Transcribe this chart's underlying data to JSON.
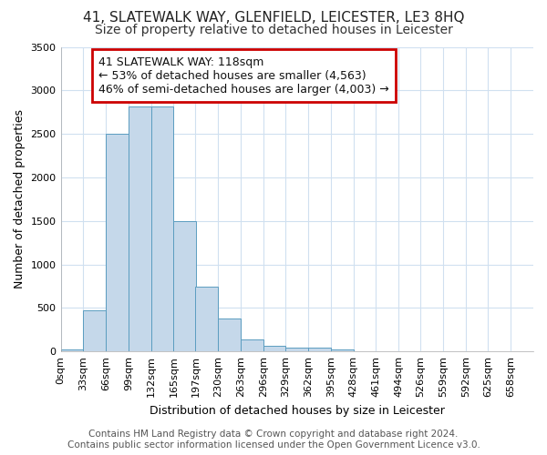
{
  "title": "41, SLATEWALK WAY, GLENFIELD, LEICESTER, LE3 8HQ",
  "subtitle": "Size of property relative to detached houses in Leicester",
  "xlabel": "Distribution of detached houses by size in Leicester",
  "ylabel": "Number of detached properties",
  "footer_line1": "Contains HM Land Registry data © Crown copyright and database right 2024.",
  "footer_line2": "Contains public sector information licensed under the Open Government Licence v3.0.",
  "annotation_line1": "41 SLATEWALK WAY: 118sqm",
  "annotation_line2": "← 53% of detached houses are smaller (4,563)",
  "annotation_line3": "46% of semi-detached houses are larger (4,003) →",
  "bin_starts": [
    0,
    33,
    66,
    99,
    132,
    165,
    197,
    230,
    263,
    296,
    329,
    362,
    395,
    428,
    461,
    494,
    526,
    559,
    592,
    625,
    658
  ],
  "bar_heights": [
    25,
    470,
    2500,
    2820,
    2820,
    1500,
    740,
    380,
    140,
    65,
    40,
    40,
    20,
    0,
    0,
    0,
    0,
    0,
    0,
    0,
    0
  ],
  "bar_color": "#c5d8ea",
  "bar_edge_color": "#5b9dc0",
  "ylim": [
    0,
    3500
  ],
  "yticks": [
    0,
    500,
    1000,
    1500,
    2000,
    2500,
    3000,
    3500
  ],
  "xlim_min": 0,
  "xlim_max": 691,
  "bg_color": "#ffffff",
  "axes_bg_color": "#ffffff",
  "grid_color": "#d0e0f0",
  "annotation_box_edge": "#cc0000",
  "title_fontsize": 11,
  "subtitle_fontsize": 10,
  "xlabel_fontsize": 9,
  "ylabel_fontsize": 9,
  "tick_fontsize": 8,
  "footer_fontsize": 7.5,
  "annotation_fontsize": 9
}
